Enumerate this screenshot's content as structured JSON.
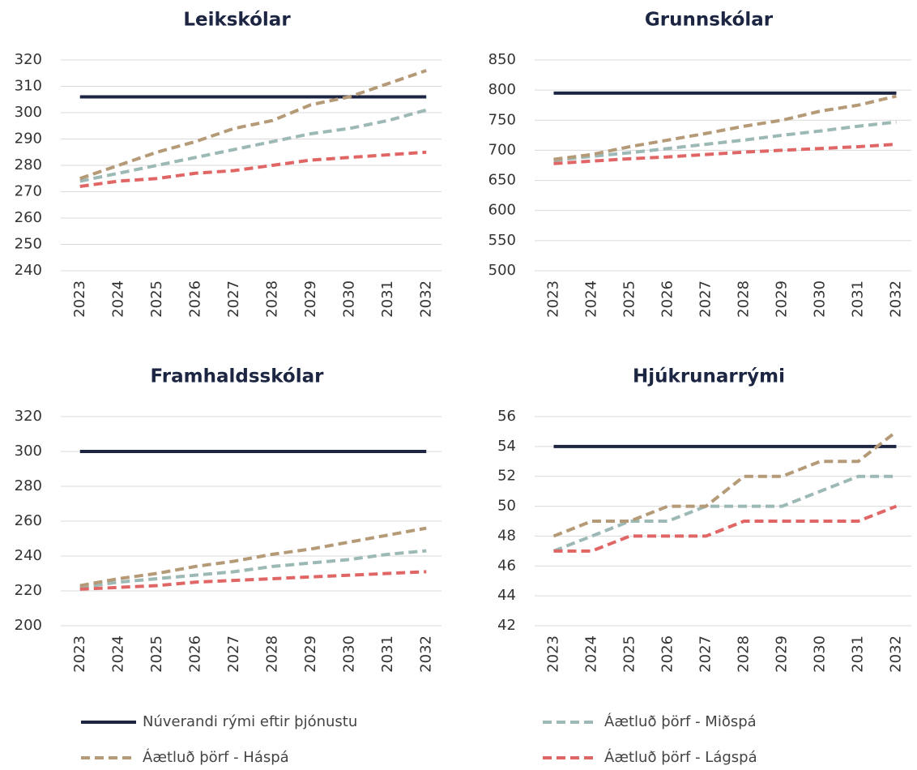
{
  "legend": [
    {
      "name": "Núverandi rými eftir þjónustu",
      "color": "#1c2541",
      "dashed": false
    },
    {
      "name": "Áætluð þörf - Miðspá",
      "color": "#9cb9b6",
      "dashed": true
    },
    {
      "name": "Áætluð þörf - Háspá",
      "color": "#b59a78",
      "dashed": true
    },
    {
      "name": "Áætluð þörf - Lágspá",
      "color": "#e06666",
      "dashed": true
    }
  ],
  "chart_data": [
    {
      "type": "line",
      "title": "Leikskólar",
      "categories": [
        "2023",
        "2024",
        "2025",
        "2026",
        "2027",
        "2028",
        "2029",
        "2030",
        "2031",
        "2032"
      ],
      "ylim": [
        240,
        320
      ],
      "yticks": [
        240,
        250,
        260,
        270,
        280,
        290,
        300,
        310,
        320
      ],
      "grid": true,
      "series": [
        {
          "values": [
            306,
            306,
            306,
            306,
            306,
            306,
            306,
            306,
            306,
            306
          ]
        },
        {
          "values": [
            274,
            277,
            280,
            283,
            286,
            289,
            292,
            294,
            297,
            301
          ]
        },
        {
          "values": [
            275,
            280,
            285,
            289,
            294,
            297,
            303,
            306,
            311,
            316
          ]
        },
        {
          "values": [
            272,
            274,
            275,
            277,
            278,
            280,
            282,
            283,
            284,
            285
          ]
        }
      ]
    },
    {
      "type": "line",
      "title": "Grunnskólar",
      "categories": [
        "2023",
        "2024",
        "2025",
        "2026",
        "2027",
        "2028",
        "2029",
        "2030",
        "2031",
        "2032"
      ],
      "ylim": [
        500,
        850
      ],
      "yticks": [
        500,
        550,
        600,
        650,
        700,
        750,
        800,
        850
      ],
      "grid": true,
      "series": [
        {
          "values": [
            795,
            795,
            795,
            795,
            795,
            795,
            795,
            795,
            795,
            795
          ]
        },
        {
          "values": [
            683,
            690,
            696,
            703,
            710,
            717,
            725,
            732,
            740,
            747
          ]
        },
        {
          "values": [
            685,
            693,
            706,
            717,
            728,
            740,
            750,
            765,
            775,
            790
          ]
        },
        {
          "values": [
            678,
            682,
            686,
            689,
            693,
            697,
            700,
            703,
            706,
            710
          ]
        }
      ]
    },
    {
      "type": "line",
      "title": "Framhaldsskólar",
      "categories": [
        "2023",
        "2024",
        "2025",
        "2026",
        "2027",
        "2028",
        "2029",
        "2030",
        "2031",
        "2032"
      ],
      "ylim": [
        200,
        320
      ],
      "yticks": [
        200,
        220,
        240,
        260,
        280,
        300,
        320
      ],
      "grid": true,
      "series": [
        {
          "values": [
            300,
            300,
            300,
            300,
            300,
            300,
            300,
            300,
            300,
            300
          ]
        },
        {
          "values": [
            222,
            225,
            227,
            229,
            231,
            234,
            236,
            238,
            241,
            243
          ]
        },
        {
          "values": [
            223,
            227,
            230,
            234,
            237,
            241,
            244,
            248,
            252,
            256
          ]
        },
        {
          "values": [
            221,
            222,
            223,
            225,
            226,
            227,
            228,
            229,
            230,
            231
          ]
        }
      ]
    },
    {
      "type": "line",
      "title": "Hjúkrunarrými",
      "categories": [
        "2023",
        "2024",
        "2025",
        "2026",
        "2027",
        "2028",
        "2029",
        "2030",
        "2031",
        "2032"
      ],
      "ylim": [
        42,
        56
      ],
      "yticks": [
        42,
        44,
        46,
        48,
        50,
        52,
        54,
        56
      ],
      "grid": true,
      "series": [
        {
          "values": [
            54,
            54,
            54,
            54,
            54,
            54,
            54,
            54,
            54,
            54
          ]
        },
        {
          "values": [
            47,
            48,
            49,
            49,
            50,
            50,
            50,
            51,
            52,
            52
          ]
        },
        {
          "values": [
            48,
            49,
            49,
            50,
            50,
            52,
            52,
            53,
            53,
            55
          ]
        },
        {
          "values": [
            47,
            47,
            48,
            48,
            48,
            49,
            49,
            49,
            49,
            50
          ]
        }
      ]
    }
  ]
}
